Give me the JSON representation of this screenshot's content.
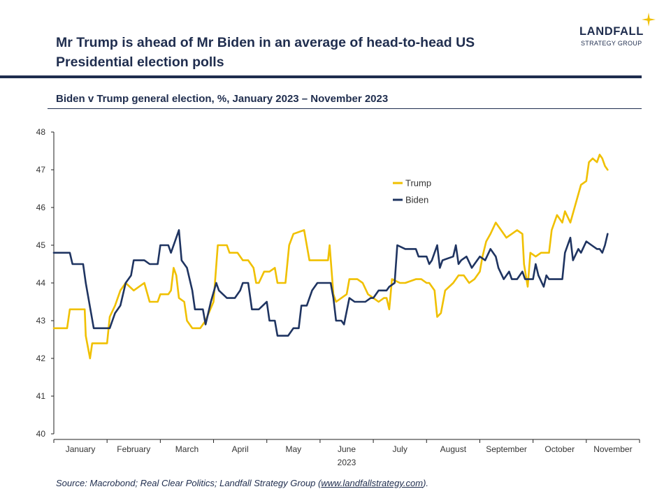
{
  "header": {
    "title_line1": "Mr Trump is ahead of Mr Biden in an average of head-to-head US",
    "title_line2": "Presidential election polls",
    "logo_name": "LANDFALL",
    "logo_sub": "STRATEGY GROUP",
    "logo_star_icon": "sparkle-star-icon"
  },
  "subtitle": "Biden v Trump general election, %, January 2023 – November 2023",
  "footer": {
    "source_prefix": "Source: Macrobond; Real Clear Politics; Landfall Strategy Group (",
    "source_link": "www.landfallstrategy.com",
    "source_suffix": ")."
  },
  "colors": {
    "trump": "#f0c000",
    "biden": "#1f3461",
    "axis": "#222222",
    "text": "#1f2d4e"
  },
  "chart_data": {
    "type": "line",
    "title": "Biden v Trump general election, %, January 2023 – November 2023",
    "xlabel": "2023",
    "ylabel": "",
    "ylim": [
      40,
      48
    ],
    "yticks": [
      "40",
      "41",
      "42",
      "43",
      "44",
      "45",
      "46",
      "47",
      "48"
    ],
    "categories": [
      "January",
      "February",
      "March",
      "April",
      "May",
      "June",
      "July",
      "August",
      "September",
      "October",
      "November"
    ],
    "year_label": "2023",
    "grid": false,
    "legend_position": "center-right",
    "series": [
      {
        "name": "Trump",
        "color": "#f0c000",
        "points": [
          [
            0.0,
            42.8
          ],
          [
            0.25,
            42.8
          ],
          [
            0.3,
            43.3
          ],
          [
            0.55,
            43.3
          ],
          [
            0.58,
            43.3
          ],
          [
            0.6,
            42.6
          ],
          [
            0.68,
            42.0
          ],
          [
            0.72,
            42.4
          ],
          [
            0.9,
            42.4
          ],
          [
            1.0,
            42.4
          ],
          [
            1.05,
            43.1
          ],
          [
            1.15,
            43.4
          ],
          [
            1.25,
            43.8
          ],
          [
            1.35,
            44.0
          ],
          [
            1.5,
            43.8
          ],
          [
            1.7,
            44.0
          ],
          [
            1.8,
            43.5
          ],
          [
            1.95,
            43.5
          ],
          [
            2.0,
            43.7
          ],
          [
            2.15,
            43.7
          ],
          [
            2.2,
            43.8
          ],
          [
            2.25,
            44.4
          ],
          [
            2.3,
            44.2
          ],
          [
            2.35,
            43.6
          ],
          [
            2.45,
            43.5
          ],
          [
            2.5,
            43.0
          ],
          [
            2.6,
            42.8
          ],
          [
            2.75,
            42.8
          ],
          [
            2.85,
            43.0
          ],
          [
            3.0,
            43.5
          ],
          [
            3.08,
            45.0
          ],
          [
            3.25,
            45.0
          ],
          [
            3.3,
            44.8
          ],
          [
            3.45,
            44.8
          ],
          [
            3.55,
            44.6
          ],
          [
            3.65,
            44.6
          ],
          [
            3.75,
            44.4
          ],
          [
            3.8,
            44.0
          ],
          [
            3.85,
            44.0
          ],
          [
            3.95,
            44.3
          ],
          [
            4.05,
            44.3
          ],
          [
            4.15,
            44.4
          ],
          [
            4.2,
            44.0
          ],
          [
            4.35,
            44.0
          ],
          [
            4.42,
            45.0
          ],
          [
            4.5,
            45.3
          ],
          [
            4.7,
            45.4
          ],
          [
            4.75,
            45.0
          ],
          [
            4.8,
            44.6
          ],
          [
            5.0,
            44.6
          ],
          [
            5.15,
            44.6
          ],
          [
            5.18,
            45.0
          ],
          [
            5.25,
            43.7
          ],
          [
            5.3,
            43.5
          ],
          [
            5.4,
            43.6
          ],
          [
            5.5,
            43.7
          ],
          [
            5.55,
            44.1
          ],
          [
            5.7,
            44.1
          ],
          [
            5.8,
            44.0
          ],
          [
            5.9,
            43.7
          ],
          [
            6.0,
            43.6
          ],
          [
            6.1,
            43.5
          ],
          [
            6.2,
            43.6
          ],
          [
            6.25,
            43.6
          ],
          [
            6.3,
            43.3
          ],
          [
            6.35,
            44.1
          ],
          [
            6.5,
            44.0
          ],
          [
            6.6,
            44.0
          ],
          [
            6.8,
            44.1
          ],
          [
            6.9,
            44.1
          ],
          [
            7.0,
            44.0
          ],
          [
            7.05,
            44.0
          ],
          [
            7.15,
            43.8
          ],
          [
            7.2,
            43.1
          ],
          [
            7.27,
            43.2
          ],
          [
            7.35,
            43.8
          ],
          [
            7.5,
            44.0
          ],
          [
            7.6,
            44.2
          ],
          [
            7.7,
            44.2
          ],
          [
            7.8,
            44.0
          ],
          [
            7.9,
            44.1
          ],
          [
            8.0,
            44.3
          ],
          [
            8.05,
            44.7
          ],
          [
            8.12,
            45.1
          ],
          [
            8.2,
            45.3
          ],
          [
            8.3,
            45.6
          ],
          [
            8.4,
            45.4
          ],
          [
            8.5,
            45.2
          ],
          [
            8.6,
            45.3
          ],
          [
            8.7,
            45.4
          ],
          [
            8.8,
            45.3
          ],
          [
            8.83,
            44.5
          ],
          [
            8.9,
            43.9
          ],
          [
            8.95,
            44.8
          ],
          [
            9.05,
            44.7
          ],
          [
            9.15,
            44.8
          ],
          [
            9.3,
            44.8
          ],
          [
            9.35,
            45.4
          ],
          [
            9.45,
            45.8
          ],
          [
            9.55,
            45.6
          ],
          [
            9.6,
            45.9
          ],
          [
            9.7,
            45.6
          ],
          [
            9.8,
            46.1
          ],
          [
            9.9,
            46.6
          ],
          [
            10.0,
            46.7
          ],
          [
            10.05,
            47.2
          ],
          [
            10.12,
            47.3
          ],
          [
            10.2,
            47.2
          ],
          [
            10.25,
            47.4
          ],
          [
            10.3,
            47.3
          ],
          [
            10.35,
            47.1
          ],
          [
            10.4,
            47.0
          ]
        ]
      },
      {
        "name": "Biden",
        "color": "#1f3461",
        "points": [
          [
            0.0,
            44.8
          ],
          [
            0.3,
            44.8
          ],
          [
            0.35,
            44.5
          ],
          [
            0.55,
            44.5
          ],
          [
            0.6,
            44.0
          ],
          [
            0.7,
            43.2
          ],
          [
            0.75,
            42.8
          ],
          [
            1.05,
            42.8
          ],
          [
            1.1,
            43.0
          ],
          [
            1.15,
            43.2
          ],
          [
            1.25,
            43.4
          ],
          [
            1.35,
            44.0
          ],
          [
            1.45,
            44.2
          ],
          [
            1.5,
            44.6
          ],
          [
            1.7,
            44.6
          ],
          [
            1.8,
            44.5
          ],
          [
            1.95,
            44.5
          ],
          [
            2.0,
            45.0
          ],
          [
            2.15,
            45.0
          ],
          [
            2.2,
            44.8
          ],
          [
            2.3,
            45.2
          ],
          [
            2.35,
            45.4
          ],
          [
            2.4,
            44.6
          ],
          [
            2.5,
            44.4
          ],
          [
            2.6,
            43.8
          ],
          [
            2.65,
            43.3
          ],
          [
            2.8,
            43.3
          ],
          [
            2.85,
            42.9
          ],
          [
            2.95,
            43.5
          ],
          [
            3.05,
            44.0
          ],
          [
            3.1,
            43.8
          ],
          [
            3.25,
            43.6
          ],
          [
            3.4,
            43.6
          ],
          [
            3.5,
            43.8
          ],
          [
            3.55,
            44.0
          ],
          [
            3.65,
            44.0
          ],
          [
            3.72,
            43.3
          ],
          [
            3.85,
            43.3
          ],
          [
            4.0,
            43.5
          ],
          [
            4.05,
            43.0
          ],
          [
            4.15,
            43.0
          ],
          [
            4.2,
            42.6
          ],
          [
            4.4,
            42.6
          ],
          [
            4.5,
            42.8
          ],
          [
            4.6,
            42.8
          ],
          [
            4.65,
            43.4
          ],
          [
            4.75,
            43.4
          ],
          [
            4.85,
            43.8
          ],
          [
            4.95,
            44.0
          ],
          [
            5.0,
            44.0
          ],
          [
            5.2,
            44.0
          ],
          [
            5.25,
            43.6
          ],
          [
            5.3,
            43.0
          ],
          [
            5.4,
            43.0
          ],
          [
            5.45,
            42.9
          ],
          [
            5.55,
            43.6
          ],
          [
            5.65,
            43.5
          ],
          [
            5.85,
            43.5
          ],
          [
            5.95,
            43.6
          ],
          [
            6.0,
            43.6
          ],
          [
            6.1,
            43.8
          ],
          [
            6.25,
            43.8
          ],
          [
            6.3,
            43.9
          ],
          [
            6.4,
            44.0
          ],
          [
            6.45,
            45.0
          ],
          [
            6.6,
            44.9
          ],
          [
            6.8,
            44.9
          ],
          [
            6.85,
            44.7
          ],
          [
            7.0,
            44.7
          ],
          [
            7.05,
            44.5
          ],
          [
            7.1,
            44.6
          ],
          [
            7.2,
            45.0
          ],
          [
            7.25,
            44.4
          ],
          [
            7.3,
            44.6
          ],
          [
            7.5,
            44.7
          ],
          [
            7.55,
            45.0
          ],
          [
            7.6,
            44.5
          ],
          [
            7.65,
            44.6
          ],
          [
            7.75,
            44.7
          ],
          [
            7.85,
            44.4
          ],
          [
            8.0,
            44.7
          ],
          [
            8.1,
            44.6
          ],
          [
            8.2,
            44.9
          ],
          [
            8.3,
            44.7
          ],
          [
            8.35,
            44.4
          ],
          [
            8.45,
            44.1
          ],
          [
            8.55,
            44.3
          ],
          [
            8.6,
            44.1
          ],
          [
            8.7,
            44.1
          ],
          [
            8.8,
            44.3
          ],
          [
            8.85,
            44.1
          ],
          [
            9.0,
            44.1
          ],
          [
            9.05,
            44.5
          ],
          [
            9.1,
            44.2
          ],
          [
            9.2,
            43.9
          ],
          [
            9.25,
            44.2
          ],
          [
            9.3,
            44.1
          ],
          [
            9.4,
            44.1
          ],
          [
            9.55,
            44.1
          ],
          [
            9.6,
            44.8
          ],
          [
            9.7,
            45.2
          ],
          [
            9.75,
            44.6
          ],
          [
            9.85,
            44.9
          ],
          [
            9.9,
            44.8
          ],
          [
            10.0,
            45.1
          ],
          [
            10.1,
            45.0
          ],
          [
            10.2,
            44.9
          ],
          [
            10.25,
            44.9
          ],
          [
            10.3,
            44.8
          ],
          [
            10.35,
            45.0
          ],
          [
            10.4,
            45.3
          ]
        ]
      }
    ]
  }
}
